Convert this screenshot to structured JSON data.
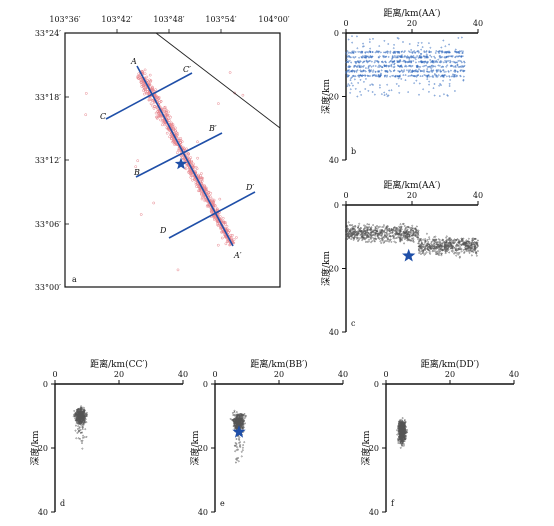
{
  "figure": {
    "map_panel": {
      "panel_label": "a",
      "x_tick_labels": [
        "103°36′",
        "103°42′",
        "103°48′",
        "103°54′",
        "104°00′"
      ],
      "y_tick_labels": [
        "33°24′",
        "33°18′",
        "33°12′",
        "33°06′",
        "33°00′"
      ],
      "profile_labels": [
        "A",
        "A′",
        "B",
        "B′",
        "C",
        "C′",
        "D",
        "D′"
      ],
      "epicenter_marker": "star",
      "colors": {
        "profile_lines": "#1f4fa8",
        "seismicity": "#e8878f",
        "epicenter": "#1f4fa8",
        "fault_trace": "#222222"
      }
    },
    "section_panels": [
      {
        "panel_label": "b",
        "title": "距离/km(AA′)",
        "ylabel": "深度/km",
        "x_ticks": [
          "0",
          "20",
          "40"
        ],
        "y_ticks": [
          "0",
          "20",
          "40"
        ],
        "has_star": false
      },
      {
        "panel_label": "c",
        "title": "距离/km(AA′)",
        "ylabel": "深度/km",
        "x_ticks": [
          "0",
          "20",
          "40"
        ],
        "y_ticks": [
          "0",
          "20",
          "40"
        ],
        "has_star": true
      },
      {
        "panel_label": "d",
        "title": "距离/km(CC′)",
        "ylabel": "深度/km",
        "x_ticks": [
          "0",
          "20",
          "40"
        ],
        "y_ticks": [
          "0",
          "20",
          "40"
        ],
        "has_star": false
      },
      {
        "panel_label": "e",
        "title": "距离/km(BB′)",
        "ylabel": "深度/km",
        "x_ticks": [
          "0",
          "20",
          "40"
        ],
        "y_ticks": [
          "0",
          "20",
          "40"
        ],
        "has_star": true
      },
      {
        "panel_label": "f",
        "title": "距离/km(DD′)",
        "ylabel": "深度/km",
        "x_ticks": [
          "0",
          "20",
          "40"
        ],
        "y_ticks": [
          "0",
          "20",
          "40"
        ],
        "has_star": false
      }
    ],
    "colors": {
      "section_points": "#555555",
      "section_points_b": "#3a6fbf",
      "star": "#1f4fa8"
    }
  },
  "chart_data": [
    {
      "type": "scatter",
      "panel": "a",
      "xlim": [
        "103°36′",
        "104°00′"
      ],
      "ylim": [
        "33°00′",
        "33°24′"
      ],
      "profiles": [
        {
          "name": "AA′",
          "start": [
            "103°46′",
            "33°21′"
          ],
          "end": [
            "103°55′",
            "33°03′"
          ]
        },
        {
          "name": "BB′",
          "start": [
            "103°46′",
            "33°10′"
          ],
          "end": [
            "103°56′",
            "33°14′"
          ]
        },
        {
          "name": "CC′",
          "start": [
            "103°43′",
            "33°16′"
          ],
          "end": [
            "103°52′",
            "33°20′"
          ]
        },
        {
          "name": "DD′",
          "start": [
            "103°49′",
            "33°05′"
          ],
          "end": [
            "103°59′",
            "33°09′"
          ]
        }
      ],
      "epicenter": {
        "lon": "103°49′",
        "lat": "33°12′"
      }
    },
    {
      "type": "scatter",
      "panel": "b",
      "xlim": [
        0,
        40
      ],
      "ylim": [
        40,
        0
      ],
      "x_range": [
        0,
        36
      ],
      "y_range": [
        0,
        20
      ],
      "note_dense_layer_depth": [
        6,
        14
      ]
    },
    {
      "type": "scatter",
      "panel": "c",
      "xlim": [
        0,
        40
      ],
      "ylim": [
        40,
        0
      ],
      "x_range": [
        0,
        40
      ],
      "y_range": [
        3,
        22
      ],
      "star": {
        "x": 19,
        "y": 16
      }
    },
    {
      "type": "scatter",
      "panel": "d",
      "xlim": [
        0,
        40
      ],
      "ylim": [
        40,
        0
      ],
      "x_range": [
        3,
        13
      ],
      "y_range": [
        3,
        25
      ]
    },
    {
      "type": "scatter",
      "panel": "e",
      "xlim": [
        0,
        40
      ],
      "ylim": [
        40,
        0
      ],
      "x_range": [
        3,
        13
      ],
      "y_range": [
        5,
        28
      ],
      "star": {
        "x": 7.5,
        "y": 15
      }
    },
    {
      "type": "scatter",
      "panel": "f",
      "xlim": [
        0,
        40
      ],
      "ylim": [
        40,
        0
      ],
      "x_range": [
        2,
        8
      ],
      "y_range": [
        5,
        32
      ]
    }
  ]
}
